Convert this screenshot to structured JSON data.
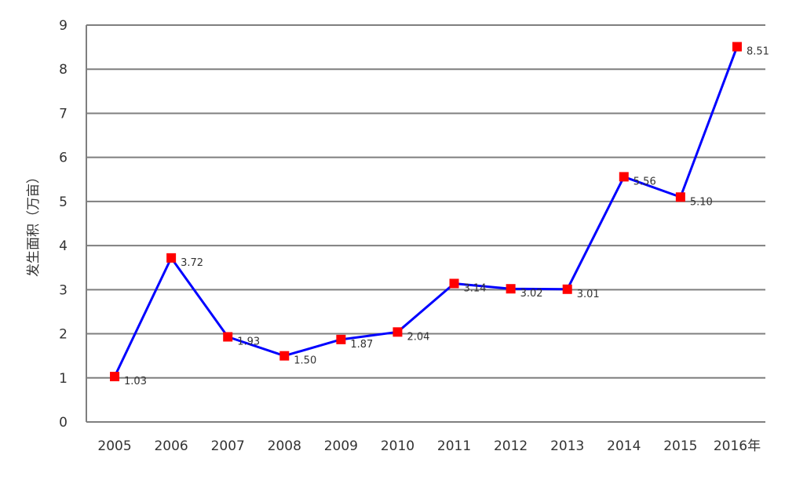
{
  "chart_data": {
    "type": "line",
    "title": "",
    "xlabel": "",
    "ylabel": "发生面积（万亩）",
    "categories": [
      "2005",
      "2006",
      "2007",
      "2008",
      "2009",
      "2010",
      "2011",
      "2012",
      "2013",
      "2014",
      "2015",
      "2016年"
    ],
    "series": [
      {
        "values": [
          1.03,
          3.72,
          1.93,
          1.5,
          1.87,
          2.04,
          3.14,
          3.02,
          3.01,
          5.56,
          5.1,
          8.51
        ],
        "data_labels": [
          "1.03",
          "3.72",
          "1.93",
          "1.50",
          "1.87",
          "2.04",
          "3.14",
          "3.02",
          "3.01",
          "5.56",
          "5.10",
          "8.51"
        ],
        "line_color": "#0000ff",
        "marker_color": "#ff0000",
        "marker": "square"
      }
    ],
    "ylim": [
      0,
      9
    ],
    "yticks": [
      "0",
      "1",
      "2",
      "3",
      "4",
      "5",
      "6",
      "7",
      "8",
      "9"
    ],
    "grid": "horizontal",
    "legend": "none"
  }
}
